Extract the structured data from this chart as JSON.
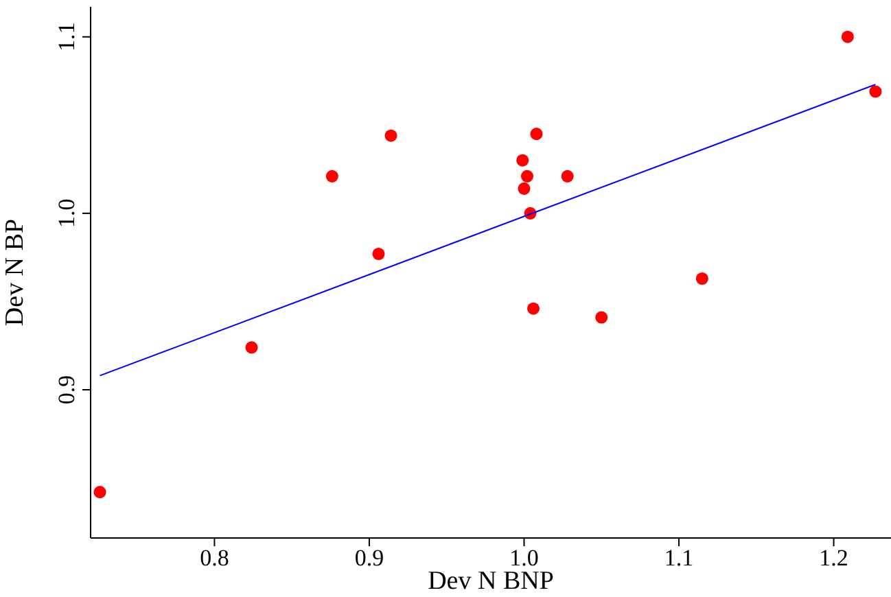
{
  "chart_data": {
    "type": "scatter",
    "xlabel": "Dev N BNP",
    "ylabel": "Dev N BP",
    "xlim": [
      0.72,
      1.237
    ],
    "ylim": [
      0.816,
      1.117
    ],
    "xticks": [
      {
        "value": 0.8,
        "label": "0.8"
      },
      {
        "value": 0.9,
        "label": "0.9"
      },
      {
        "value": 1.0,
        "label": "1.0"
      },
      {
        "value": 1.1,
        "label": "1.1"
      },
      {
        "value": 1.2,
        "label": "1.2"
      }
    ],
    "yticks": [
      {
        "value": 0.9,
        "label": "0.9"
      },
      {
        "value": 1.0,
        "label": "1.0"
      },
      {
        "value": 1.1,
        "label": "1.1"
      }
    ],
    "grid": false,
    "legend": false,
    "series": [
      {
        "color": "#ff0000",
        "marker": "circle",
        "x": [
          0.726,
          0.824,
          0.876,
          0.906,
          0.914,
          0.999,
          1.0,
          1.002,
          1.008,
          1.004,
          1.006,
          1.028,
          1.05,
          1.115,
          1.209,
          1.227
        ],
        "values": [
          0.842,
          0.924,
          1.021,
          0.977,
          1.044,
          1.03,
          1.014,
          1.021,
          1.045,
          1.0,
          0.946,
          1.021,
          0.941,
          0.963,
          1.1,
          1.069
        ]
      },
      {
        "type": "line",
        "color": "#0000ff",
        "marker": "none",
        "line_style": "solid",
        "x": [
          0.726,
          1.227
        ],
        "values": [
          0.908,
          1.073
        ]
      }
    ]
  }
}
